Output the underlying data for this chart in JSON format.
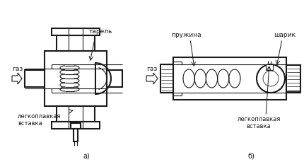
{
  "bg_color": "#ffffff",
  "line_color": "#1a1a1a",
  "lw_outer": 1.5,
  "lw_inner": 0.8,
  "fig_width": 4.3,
  "fig_height": 2.3,
  "dpi": 100,
  "label_a": "а)",
  "label_b": "б)",
  "gas_label": "газ",
  "tarelka_label": "тарель",
  "legko_label_a": "легкоплавкая\nвставка",
  "pruzhina_label": "пружина",
  "sharik_label": "шарик",
  "legko_label_b": "легкоплавкая\nвставка"
}
